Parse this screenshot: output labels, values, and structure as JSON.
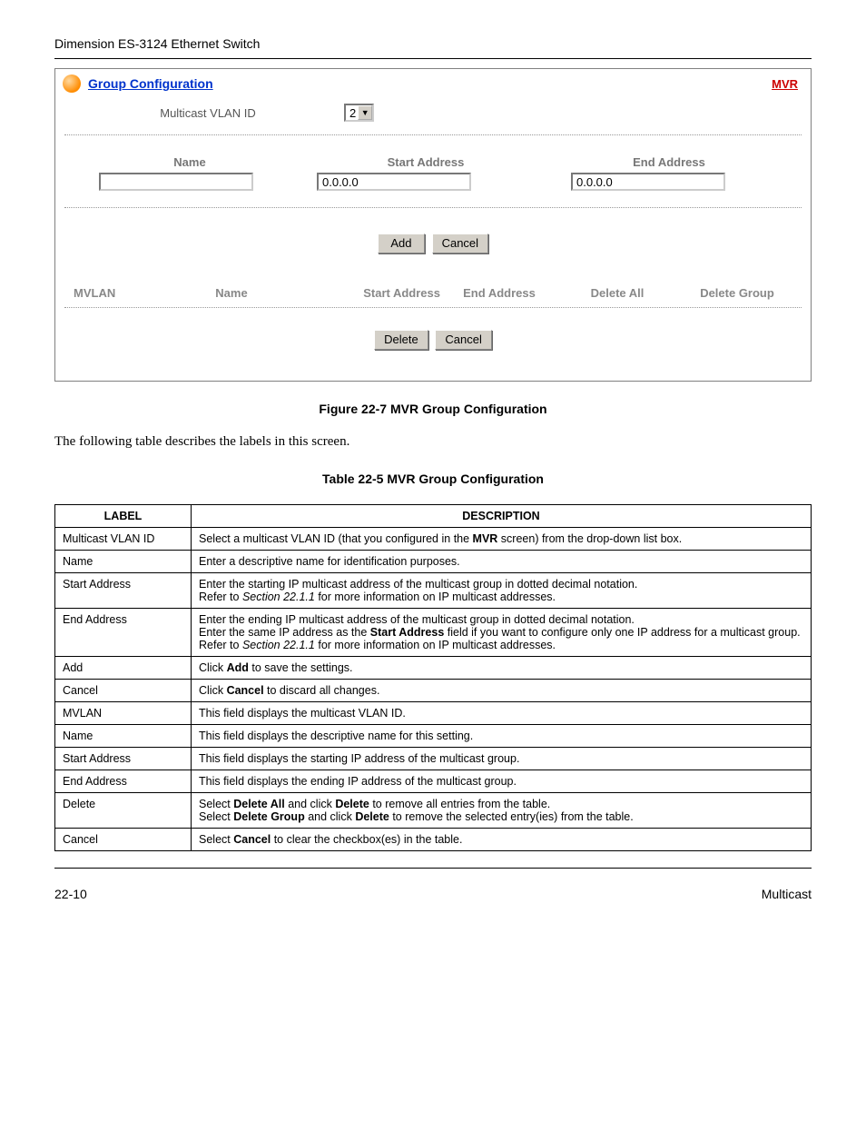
{
  "header": {
    "product": "Dimension ES-3124 Ethernet Switch"
  },
  "panel": {
    "title": "Group Configuration",
    "link": "MVR",
    "multicast_label": "Multicast VLAN ID",
    "multicast_value": "2",
    "headers": {
      "name": "Name",
      "start": "Start Address",
      "end": "End Address"
    },
    "inputs": {
      "name": "",
      "start": "0.0.0.0",
      "end": "0.0.0.0"
    },
    "buttons": {
      "add": "Add",
      "cancel": "Cancel",
      "delete": "Delete",
      "cancel2": "Cancel"
    },
    "result_headers": {
      "mvlan": "MVLAN",
      "name": "Name",
      "start": "Start Address",
      "end": "End Address",
      "delall": "Delete All",
      "delgrp": "Delete Group"
    }
  },
  "figure_caption": "Figure 22-7 MVR Group Configuration",
  "intro_text": "The following table describes the labels in this screen.",
  "table_caption": "Table 22-5 MVR Group Configuration",
  "table": {
    "header": {
      "label": "LABEL",
      "desc": "DESCRIPTION"
    },
    "rows": [
      {
        "label": "Multicast VLAN ID",
        "desc_html": "Select a multicast VLAN ID (that you configured in the <b>MVR</b> screen) from the drop-down list box."
      },
      {
        "label": "Name",
        "desc_html": "Enter a descriptive name for identification purposes."
      },
      {
        "label": "Start Address",
        "desc_html": "Enter the starting IP multicast address of the multicast group in dotted decimal notation.<br>Refer to <i>Section 22.1.1</i> for more information on IP multicast addresses."
      },
      {
        "label": "End Address",
        "desc_html": "Enter the ending IP multicast address of the multicast group in dotted decimal notation.<br>Enter the same IP address as the <b>Start Address</b> field if you want to configure only one IP address for a multicast group.<br>Refer to <i>Section 22.1.1 </i> for more information on IP multicast addresses."
      },
      {
        "label": "Add",
        "desc_html": "Click <b>Add</b> to save the settings."
      },
      {
        "label": "Cancel",
        "desc_html": "Click <b>Cancel</b> to discard all changes."
      },
      {
        "label": "MVLAN",
        "desc_html": "This field displays the multicast VLAN ID."
      },
      {
        "label": "Name",
        "desc_html": "This field displays the descriptive name for this setting."
      },
      {
        "label": "Start Address",
        "desc_html": "This field displays the starting IP address of the multicast group."
      },
      {
        "label": "End Address",
        "desc_html": "This field displays the ending IP address of the multicast group."
      },
      {
        "label": "Delete",
        "desc_html": "Select <b>Delete All</b> and click <b>Delete</b> to remove all entries from the table.<br>Select <b>Delete Group</b> and click <b>Delete</b> to remove the selected entry(ies) from the table."
      },
      {
        "label": "Cancel",
        "desc_html": "Select <b>Cancel</b> to clear the checkbox(es) in the table."
      }
    ]
  },
  "footer": {
    "left": "22-10",
    "right": "Multicast"
  }
}
